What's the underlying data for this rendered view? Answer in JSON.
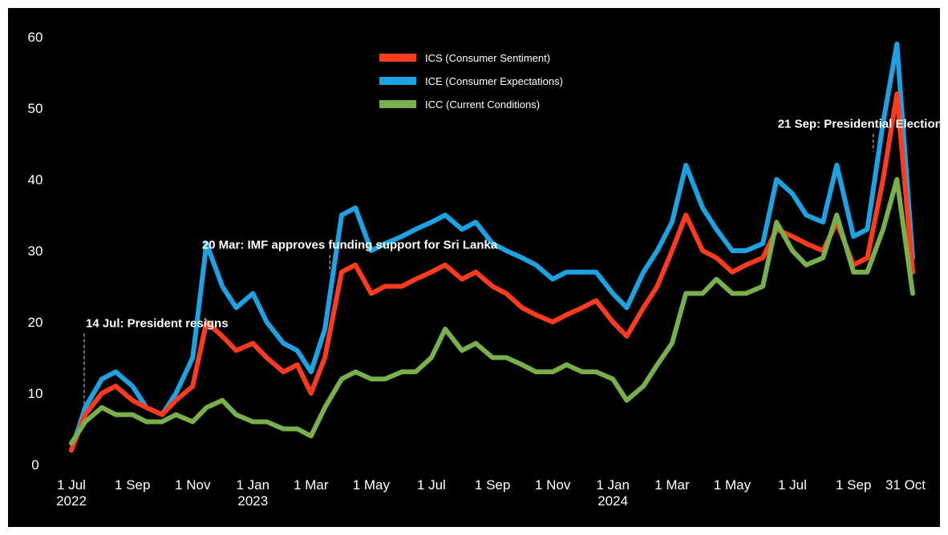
{
  "chart_data": {
    "type": "line",
    "title": "",
    "xlabel": "",
    "ylabel": "",
    "ylim": [
      0,
      60
    ],
    "yticks": [
      0,
      10,
      20,
      30,
      40,
      50,
      60
    ],
    "grid": false,
    "legend_position": "top-center",
    "background": "#000000",
    "x_ticks": [
      {
        "date": "2022-07-01",
        "label": "1 Jul",
        "year": "2022"
      },
      {
        "date": "2022-09-01",
        "label": "1 Sep",
        "year": ""
      },
      {
        "date": "2022-11-01",
        "label": "1 Nov",
        "year": ""
      },
      {
        "date": "2023-01-01",
        "label": "1 Jan",
        "year": "2023"
      },
      {
        "date": "2023-03-01",
        "label": "1 Mar",
        "year": ""
      },
      {
        "date": "2023-05-01",
        "label": "1 May",
        "year": ""
      },
      {
        "date": "2023-07-01",
        "label": "1 Jul",
        "year": ""
      },
      {
        "date": "2023-09-01",
        "label": "1 Sep",
        "year": ""
      },
      {
        "date": "2023-11-01",
        "label": "1 Nov",
        "year": ""
      },
      {
        "date": "2024-01-01",
        "label": "1 Jan",
        "year": "2024"
      },
      {
        "date": "2024-03-01",
        "label": "1 Mar",
        "year": ""
      },
      {
        "date": "2024-05-01",
        "label": "1 May",
        "year": ""
      },
      {
        "date": "2024-07-01",
        "label": "1 Jul",
        "year": ""
      },
      {
        "date": "2024-09-01",
        "label": "1 Sep",
        "year": ""
      },
      {
        "date": "2024-10-31",
        "label": "31 Oct",
        "year": ""
      }
    ],
    "x": [
      "2022-07-01",
      "2022-07-15",
      "2022-08-01",
      "2022-08-15",
      "2022-09-01",
      "2022-09-15",
      "2022-10-01",
      "2022-10-15",
      "2022-11-01",
      "2022-11-15",
      "2022-12-01",
      "2022-12-15",
      "2023-01-01",
      "2023-01-15",
      "2023-02-01",
      "2023-02-15",
      "2023-03-01",
      "2023-03-15",
      "2023-04-01",
      "2023-04-15",
      "2023-05-01",
      "2023-05-15",
      "2023-06-01",
      "2023-06-15",
      "2023-07-01",
      "2023-07-15",
      "2023-08-01",
      "2023-08-15",
      "2023-09-01",
      "2023-09-15",
      "2023-10-01",
      "2023-10-15",
      "2023-11-01",
      "2023-11-15",
      "2023-12-01",
      "2023-12-15",
      "2024-01-01",
      "2024-01-15",
      "2024-02-01",
      "2024-02-15",
      "2024-03-01",
      "2024-03-15",
      "2024-04-01",
      "2024-04-15",
      "2024-05-01",
      "2024-05-15",
      "2024-06-01",
      "2024-06-15",
      "2024-07-01",
      "2024-07-15",
      "2024-08-01",
      "2024-08-15",
      "2024-09-01",
      "2024-09-15",
      "2024-10-01",
      "2024-10-15",
      "2024-10-31"
    ],
    "series": [
      {
        "name": "ICS (Consumer Sentiment)",
        "color": "#ff3b1f",
        "values": [
          2,
          7,
          10,
          11,
          9,
          8,
          7,
          9,
          11,
          20,
          18,
          16,
          17,
          15,
          13,
          14,
          10,
          15,
          27,
          28,
          24,
          25,
          25,
          26,
          27,
          28,
          26,
          27,
          25,
          24,
          22,
          21,
          20,
          21,
          22,
          23,
          20,
          18,
          22,
          25,
          30,
          35,
          30,
          29,
          27,
          28,
          29,
          33,
          32,
          31,
          30,
          34,
          28,
          29,
          40,
          52,
          27
        ]
      },
      {
        "name": "ICE (Consumer Expectations)",
        "color": "#1ca3e4",
        "values": [
          2,
          8,
          12,
          13,
          11,
          8,
          7,
          10,
          15,
          31,
          25,
          22,
          24,
          20,
          17,
          16,
          13,
          19,
          35,
          36,
          30,
          31,
          32,
          33,
          34,
          35,
          33,
          34,
          31,
          30,
          29,
          28,
          26,
          27,
          27,
          27,
          24,
          22,
          27,
          30,
          34,
          42,
          36,
          33,
          30,
          30,
          31,
          40,
          38,
          35,
          34,
          42,
          32,
          33,
          48,
          59,
          29
        ]
      },
      {
        "name": "ICC (Current Conditions)",
        "color": "#78b04b",
        "values": [
          3,
          6,
          8,
          7,
          7,
          6,
          6,
          7,
          6,
          8,
          9,
          7,
          6,
          6,
          5,
          5,
          4,
          8,
          12,
          13,
          12,
          12,
          13,
          13,
          15,
          19,
          16,
          17,
          15,
          15,
          14,
          13,
          13,
          14,
          13,
          13,
          12,
          9,
          11,
          14,
          17,
          24,
          24,
          26,
          24,
          24,
          25,
          34,
          30,
          28,
          29,
          35,
          27,
          27,
          33,
          40,
          24
        ]
      }
    ],
    "annotations": [
      {
        "date": "2022-07-14",
        "value": 19.5,
        "text": "14 Jul: President resigns"
      },
      {
        "date": "2023-03-20",
        "value": 30.5,
        "text": "20 Mar: IMF approves funding support for Sri Lanka"
      },
      {
        "date": "2024-09-21",
        "value": 47.5,
        "text": "21 Sep: Presidential Election"
      }
    ]
  }
}
